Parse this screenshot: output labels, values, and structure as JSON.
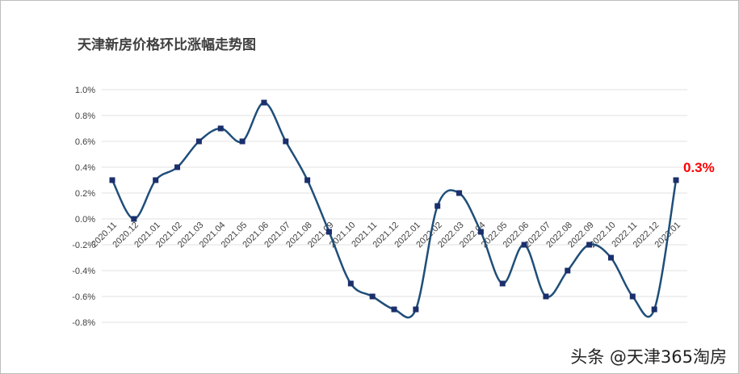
{
  "chart_data": {
    "type": "line",
    "title": "天津新房价格环比涨幅走势图",
    "categories": [
      "2020.11",
      "2020.12",
      "2021.01",
      "2021.02",
      "2021.03",
      "2021.04",
      "2021.05",
      "2021.06",
      "2021.07",
      "2021.08",
      "2021.09",
      "2021.10",
      "2021.11",
      "2021.12",
      "2022.01",
      "2022.02",
      "2022.03",
      "2022.04",
      "2022.05",
      "2022.06",
      "2022.07",
      "2022.08",
      "2022.09",
      "2022.10",
      "2022.11",
      "2022.12",
      "2023.01"
    ],
    "values": [
      0.3,
      0.0,
      0.3,
      0.4,
      0.6,
      0.7,
      0.6,
      0.9,
      0.6,
      0.3,
      -0.1,
      -0.5,
      -0.6,
      -0.7,
      -0.7,
      0.1,
      0.2,
      -0.1,
      -0.5,
      -0.2,
      -0.6,
      -0.4,
      -0.2,
      -0.3,
      -0.6,
      -0.7,
      0.3
    ],
    "yticks": [
      "1.0%",
      "0.8%",
      "0.6%",
      "0.4%",
      "0.2%",
      "0.0%",
      "-0.2%",
      "-0.4%",
      "-0.6%",
      "-0.8%"
    ],
    "ylim": [
      -0.8,
      1.0
    ],
    "unit": "%",
    "grid": true,
    "smooth": true,
    "line_color": "#1f4e79",
    "marker_color": "#1a2f6b",
    "annotation": {
      "text": "0.3%",
      "color": "#ff0000"
    }
  },
  "watermark": "头条 @天津365淘房"
}
